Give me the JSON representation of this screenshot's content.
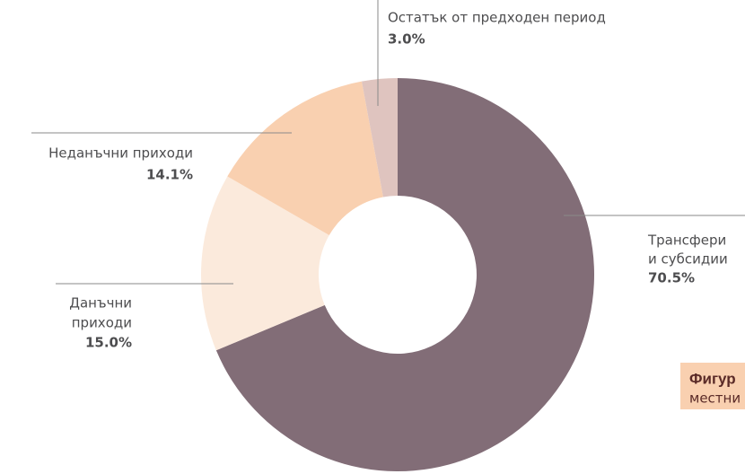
{
  "chart_data": {
    "type": "donut",
    "categories": [
      [
        "Трансфери",
        "и субсидии"
      ],
      [
        "Данъчни",
        "приходи"
      ],
      [
        "Неданъчни приходи"
      ],
      [
        "Остатък от предходен период"
      ]
    ],
    "values": [
      70.5,
      15.0,
      14.1,
      3.0
    ],
    "value_labels": [
      "70.5%",
      "15.0%",
      "14.1%",
      "3.0%"
    ],
    "colors": [
      "#826d77",
      "#fbeadc",
      "#f9d0b0",
      "#dfc4bf"
    ],
    "caption": [
      "Фигур",
      "местни"
    ]
  }
}
